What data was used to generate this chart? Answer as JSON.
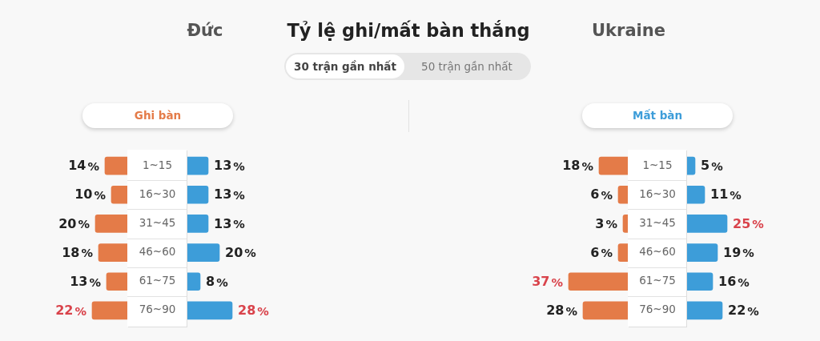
{
  "chart_data": [
    {
      "type": "other",
      "title": "Tỷ lệ ghi/mất bàn thắng",
      "annotations": [
        "Đức",
        "Ukraine",
        "30 trận gần nhất",
        "50 trận gần nhất",
        "Ghi bàn",
        "Mất bàn"
      ]
    },
    {
      "type": "bar",
      "orientation": "horizontal",
      "categories": [
        "1~15",
        "16~30",
        "31~45",
        "46~60",
        "61~75",
        "76~90"
      ],
      "color": "#e47b48",
      "values": [
        14,
        10,
        20,
        18,
        13,
        22
      ],
      "value_labels": [
        "14%",
        "10%",
        "20%",
        "18%",
        "13%",
        "22%"
      ]
    },
    {
      "type": "bar",
      "orientation": "horizontal",
      "categories": [
        null,
        null,
        null,
        null,
        null,
        null
      ],
      "color": "#3d9dd9",
      "values": [
        13,
        13,
        13,
        20,
        8,
        28
      ],
      "value_labels": [
        "13%",
        "13%",
        "13%",
        "20%",
        "8%",
        "28%"
      ]
    },
    {
      "type": "bar",
      "orientation": "horizontal",
      "categories": [
        "1~15",
        "16~30",
        "31~45",
        "46~60",
        "61~75",
        "76~90"
      ],
      "color": "#e47b48",
      "values": [
        18,
        6,
        3,
        6,
        37,
        28
      ],
      "value_labels": [
        "18%",
        "6%",
        "3%",
        "6%",
        "37%",
        "28%"
      ]
    },
    {
      "type": "bar",
      "orientation": "horizontal",
      "categories": [
        null,
        null,
        null,
        null,
        null,
        null
      ],
      "color": "#3d9dd9",
      "values": [
        5,
        11,
        25,
        19,
        16,
        22
      ],
      "value_labels": [
        "5%",
        "11%",
        "25%",
        "19%",
        "16%",
        "22%"
      ]
    }
  ]
}
